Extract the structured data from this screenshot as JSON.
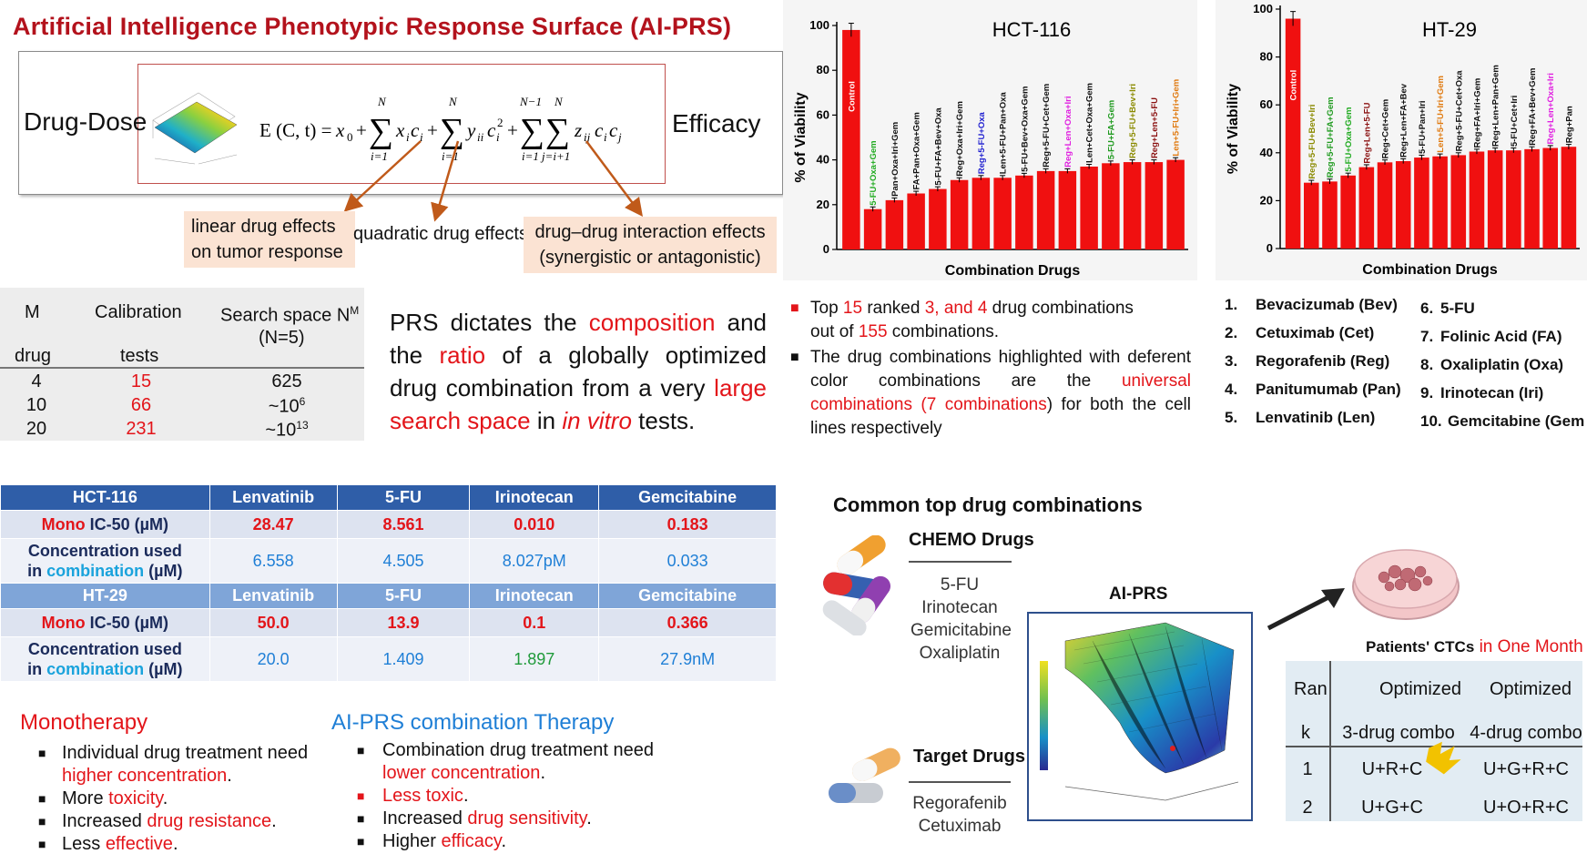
{
  "title": "Artificial Intelligence Phenotypic Response Surface (AI-PRS)",
  "equation": {
    "left_label": "Drug-Dose",
    "right_label": "Efficacy",
    "labels": {
      "linear": "linear drug effects on tumor response",
      "quadratic": "quadratic drug effects",
      "interaction": "drug–drug interaction effects (synergistic or antagonistic)"
    }
  },
  "calibration_table": {
    "headers": [
      "M",
      "drug",
      "Calibration",
      "tests",
      "Search space N",
      "M",
      "(N=5)"
    ],
    "rows": [
      {
        "drug": "4",
        "tests": "15",
        "space": "625"
      },
      {
        "drug": "10",
        "tests": "66",
        "space": "~10",
        "exp": "6"
      },
      {
        "drug": "20",
        "tests": "231",
        "space": "~10",
        "exp": "13"
      }
    ]
  },
  "prs_text": {
    "p1": "PRS dictates the ",
    "w1": "composition",
    "p2": " and the ",
    "w2": "ratio",
    "p3": " of a globally optimized drug combination from a very ",
    "w3": "large search space",
    "p4": " in ",
    "w4": "in vitro",
    "p5": " tests."
  },
  "chart_data": [
    {
      "type": "bar",
      "title": "HCT-116",
      "xlabel": "Combination Drugs",
      "ylabel": "% of Viability",
      "ylim": [
        0,
        100
      ],
      "yticks": [
        0,
        20,
        40,
        60,
        80,
        100
      ],
      "categories": [
        "Control",
        "5-FU+Oxa+Gem",
        "Pan+Oxa+Iri+Gem",
        "FA+Pan+Oxa+Gem",
        "5-FU+FA+Bev+Oxa",
        "Reg+Oxa+Iri+Gem",
        "Reg+5-FU+Oxa",
        "Len+5-FU+Pan+Oxa",
        "5-FU+Bev+Oxa+Gem",
        "Reg+5-FU+Cet+Gem",
        "Reg+Len+Oxa+Iri",
        "Len+Cet+Oxa+Gem",
        "5-FU+FA+Gem",
        "Reg+5-FU+Bev+Iri",
        "Reg+Len+5-FU",
        "Len+5-FU+Iri+Gem"
      ],
      "label_colors": [
        "#ffffff",
        "#1faa1f",
        "#111111",
        "#111111",
        "#111111",
        "#111111",
        "#2020d0",
        "#111111",
        "#111111",
        "#111111",
        "#e020e0",
        "#111111",
        "#1f9a1f",
        "#8a8a00",
        "#8a1010",
        "#e07a10"
      ],
      "values": [
        98,
        18,
        22,
        25,
        27,
        31,
        32,
        32,
        33,
        35,
        35,
        37,
        38.5,
        39,
        39,
        40
      ]
    },
    {
      "type": "bar",
      "title": "HT-29",
      "xlabel": "Combination Drugs",
      "ylabel": "% of Viability",
      "ylim": [
        0,
        100
      ],
      "yticks": [
        0,
        20,
        40,
        60,
        80,
        100
      ],
      "categories": [
        "Control",
        "Reg+5-FU+Bev+Iri",
        "Reg+5-FU+FA+Gem",
        "5-FU+Oxa+Gem",
        "Reg+Len+5-FU",
        "Reg+Cet+Gem",
        "Reg+Len+FA+Bev",
        "5-FU+Pan+Iri",
        "Len+5-FU+Iri+Gem",
        "Reg+5-FU+Cet+Oxa",
        "Reg+FA+Iri+Gem",
        "Reg+Len+Pan+Gem",
        "5-FU+Cet+Iri",
        "Reg+FA+Bev+Gem",
        "Reg+Len+Oxa+Iri",
        "Reg+Pan"
      ],
      "label_colors": [
        "#ffffff",
        "#8a8a00",
        "#1f9a1f",
        "#1faa1f",
        "#8a1010",
        "#111111",
        "#111111",
        "#111111",
        "#e07a10",
        "#111111",
        "#111111",
        "#111111",
        "#111111",
        "#111111",
        "#e020e0",
        "#111111"
      ],
      "values": [
        96,
        27.5,
        28,
        30.5,
        34,
        36,
        36.5,
        38,
        38.5,
        39,
        40.5,
        41,
        41,
        41.5,
        42,
        42.5
      ]
    }
  ],
  "notes": {
    "n1a": "Top ",
    "n1b": "15",
    "n1c": " ranked ",
    "n1d": "3, and 4",
    "n1e": " drug combinations",
    "n1f": "out of ",
    "n1g": "155",
    "n1h": " combinations.",
    "n2a": "The drug combinations highlighted with deferent color combinations are the ",
    "n2b": "universal combinations (7 combinations",
    "n2c": ") for both the cell lines respectively"
  },
  "drug_list": [
    {
      "num": "1.",
      "name": "Bevacizumab (Bev)"
    },
    {
      "num": "2.",
      "name": "Cetuximab (Cet)"
    },
    {
      "num": "3.",
      "name": "Regorafenib (Reg)"
    },
    {
      "num": "4.",
      "name": "Panitumumab (Pan)"
    },
    {
      "num": "5.",
      "name": "Lenvatinib (Len)"
    },
    {
      "num": "6.",
      "name": "5-FU"
    },
    {
      "num": "7.",
      "name": "Folinic Acid (FA)"
    },
    {
      "num": "8.",
      "name": "Oxaliplatin (Oxa)"
    },
    {
      "num": "9.",
      "name": "Irinotecan (Iri)"
    },
    {
      "num": "10.",
      "name": "Gemcitabine (Gem"
    }
  ],
  "ic_table": {
    "drugs": [
      "Lenvatinib",
      "5-FU",
      "Irinotecan",
      "Gemcitabine"
    ],
    "hct": {
      "name": "HCT-116",
      "mono_a": "Mono",
      "mono_b": " IC-50 (µM)",
      "mono": [
        "28.47",
        "8.561",
        "0.010",
        "0.183"
      ],
      "conc_a": "Concentration used",
      "conc_b": "in ",
      "conc_c": "combination",
      "conc_d": " (µM)",
      "conc": [
        "6.558",
        "4.505",
        "8.027pM",
        "0.033"
      ]
    },
    "ht": {
      "name": "HT-29",
      "mono_a": "Mono",
      "mono_b": " IC-50 (µM)",
      "mono": [
        "50.0",
        "13.9",
        "0.1",
        "0.366"
      ],
      "conc_a": "Concentration used",
      "conc_b": "in ",
      "conc_c": "combination",
      "conc_d": " (µM)",
      "conc": [
        "20.0",
        "1.409",
        "1.897",
        "27.9nM"
      ]
    }
  },
  "mono": {
    "title": "Monotherapy",
    "i1a": "Individual drug treatment need ",
    "i1b": "higher concentration",
    "i1c": ".",
    "i2a": "More ",
    "i2b": "toxicity",
    "i2c": ".",
    "i3a": "Increased ",
    "i3b": "drug resistance",
    "i3c": ".",
    "i4a": "Less ",
    "i4b": "effective",
    "i4c": "."
  },
  "combo": {
    "title": "AI-PRS combination Therapy",
    "i1a": "Combination drug treatment need ",
    "i1b": "lower concentration",
    "i1c": ".",
    "i2": "Less toxic",
    "i2c": ".",
    "i3a": "Increased ",
    "i3b": "drug sensitivity",
    "i3c": ".",
    "i4a": "Higher ",
    "i4b": "efficacy",
    "i4c": "."
  },
  "workflow": {
    "common_title": "Common top drug combinations",
    "chemo_title": "CHEMO Drugs",
    "chemo_list": [
      "5-FU",
      "Irinotecan",
      "Gemicitabine",
      "Oxaliplatin"
    ],
    "target_title": "Target Drugs",
    "target_list": [
      "Regorafenib",
      "Cetuximab"
    ],
    "aiprs_label": "AI-PRS",
    "ctc_a": "Patients' CTCs",
    "ctc_b": " in One Month"
  },
  "rank_table": {
    "h_rank_a": "Ran",
    "h_rank_b": "k",
    "h3_a": "Optimized",
    "h3_b": "3-drug combo",
    "h4_a": "Optimized",
    "h4_b": "4-drug combo",
    "rows": [
      {
        "rank": "1",
        "c3": "U+R+C",
        "c4": "U+G+R+C"
      },
      {
        "rank": "2",
        "c3": "U+G+C",
        "c4": "U+O+R+C"
      }
    ],
    "crown_color": "#f2c200"
  }
}
